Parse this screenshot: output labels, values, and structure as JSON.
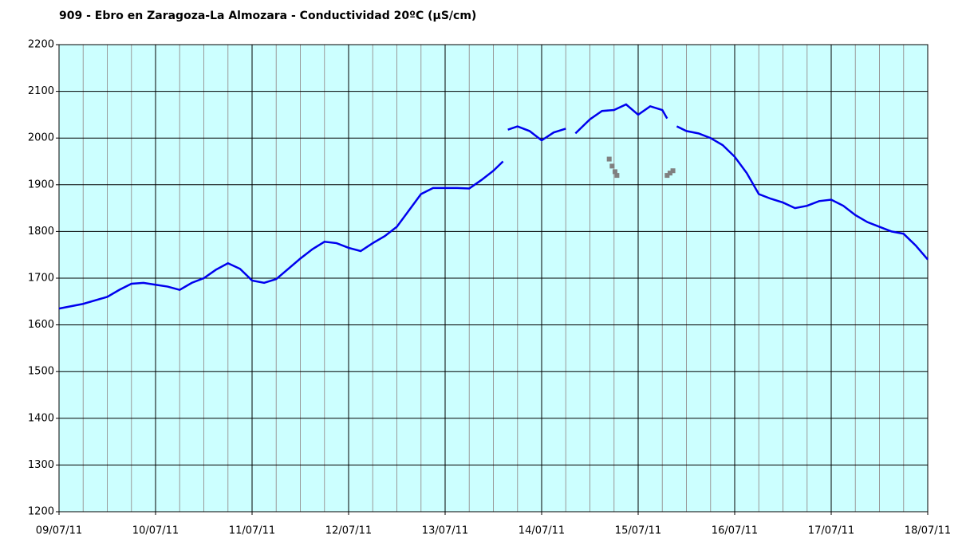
{
  "chart_data": {
    "type": "line",
    "title": "909 - Ebro en Zaragoza-La Almozara - Conductividad 20ºC (µS/cm)",
    "xlim": [
      0,
      9
    ],
    "xticks": [
      {
        "value": 0,
        "label": "09/07/11"
      },
      {
        "value": 1,
        "label": "10/07/11"
      },
      {
        "value": 2,
        "label": "11/07/11"
      },
      {
        "value": 3,
        "label": "12/07/11"
      },
      {
        "value": 4,
        "label": "13/07/11"
      },
      {
        "value": 5,
        "label": "14/07/11"
      },
      {
        "value": 6,
        "label": "15/07/11"
      },
      {
        "value": 7,
        "label": "16/07/11"
      },
      {
        "value": 8,
        "label": "17/07/11"
      },
      {
        "value": 9,
        "label": "18/07/11"
      }
    ],
    "ylim": [
      1200,
      2200
    ],
    "yticks": [
      1200,
      1300,
      1400,
      1500,
      1600,
      1700,
      1800,
      1900,
      2000,
      2100,
      2200
    ],
    "grid": true,
    "series": [
      {
        "color": "#0000ee",
        "style": "line",
        "x": [
          0,
          0.25,
          0.5,
          0.625,
          0.75,
          0.875,
          1.0,
          1.125,
          1.25,
          1.375,
          1.5,
          1.625,
          1.75,
          1.875,
          2.0,
          2.125,
          2.25,
          2.375,
          2.5,
          2.625,
          2.75,
          2.875,
          3.0,
          3.125,
          3.25,
          3.375,
          3.5,
          3.625,
          3.75,
          3.875,
          4.0,
          4.125,
          4.25,
          4.375,
          4.5,
          4.6,
          4.62,
          4.65,
          4.75,
          4.875,
          5.0,
          5.125,
          5.25,
          5.3,
          5.35,
          5.5,
          5.625,
          5.75,
          5.875,
          6.0,
          6.125,
          6.25,
          6.3,
          6.35,
          6.4,
          6.5,
          6.625,
          6.75,
          6.875,
          7.0,
          7.125,
          7.25,
          7.375,
          7.5,
          7.625,
          7.75,
          7.875,
          8.0,
          8.125,
          8.25,
          8.375,
          8.5,
          8.625,
          8.75,
          8.875,
          9.0
        ],
        "values": [
          1635,
          1645,
          1660,
          1675,
          1688,
          1690,
          1686,
          1682,
          1675,
          1690,
          1700,
          1718,
          1732,
          1720,
          1695,
          1690,
          1698,
          1720,
          1742,
          1762,
          1778,
          1775,
          1765,
          1758,
          1775,
          1790,
          1810,
          1845,
          1880,
          1893,
          1893,
          1893,
          1892,
          1910,
          1930,
          1950,
          null,
          2018,
          2025,
          2015,
          1995,
          2012,
          2020,
          null,
          2010,
          2040,
          2058,
          2060,
          2072,
          2050,
          2068,
          2060,
          2042,
          null,
          2025,
          2015,
          2010,
          2000,
          1985,
          1960,
          1925,
          1880,
          1870,
          1862,
          1850,
          1855,
          1865,
          1868,
          1855,
          1835,
          1820,
          1810,
          1800,
          1795,
          1770,
          1740
        ]
      },
      {
        "color": "#808080",
        "style": "points",
        "x": [
          5.7,
          5.73,
          5.76,
          5.78,
          6.3,
          6.33,
          6.36
        ],
        "values": [
          1955,
          1940,
          1928,
          1920,
          1920,
          1925,
          1930
        ]
      }
    ]
  }
}
